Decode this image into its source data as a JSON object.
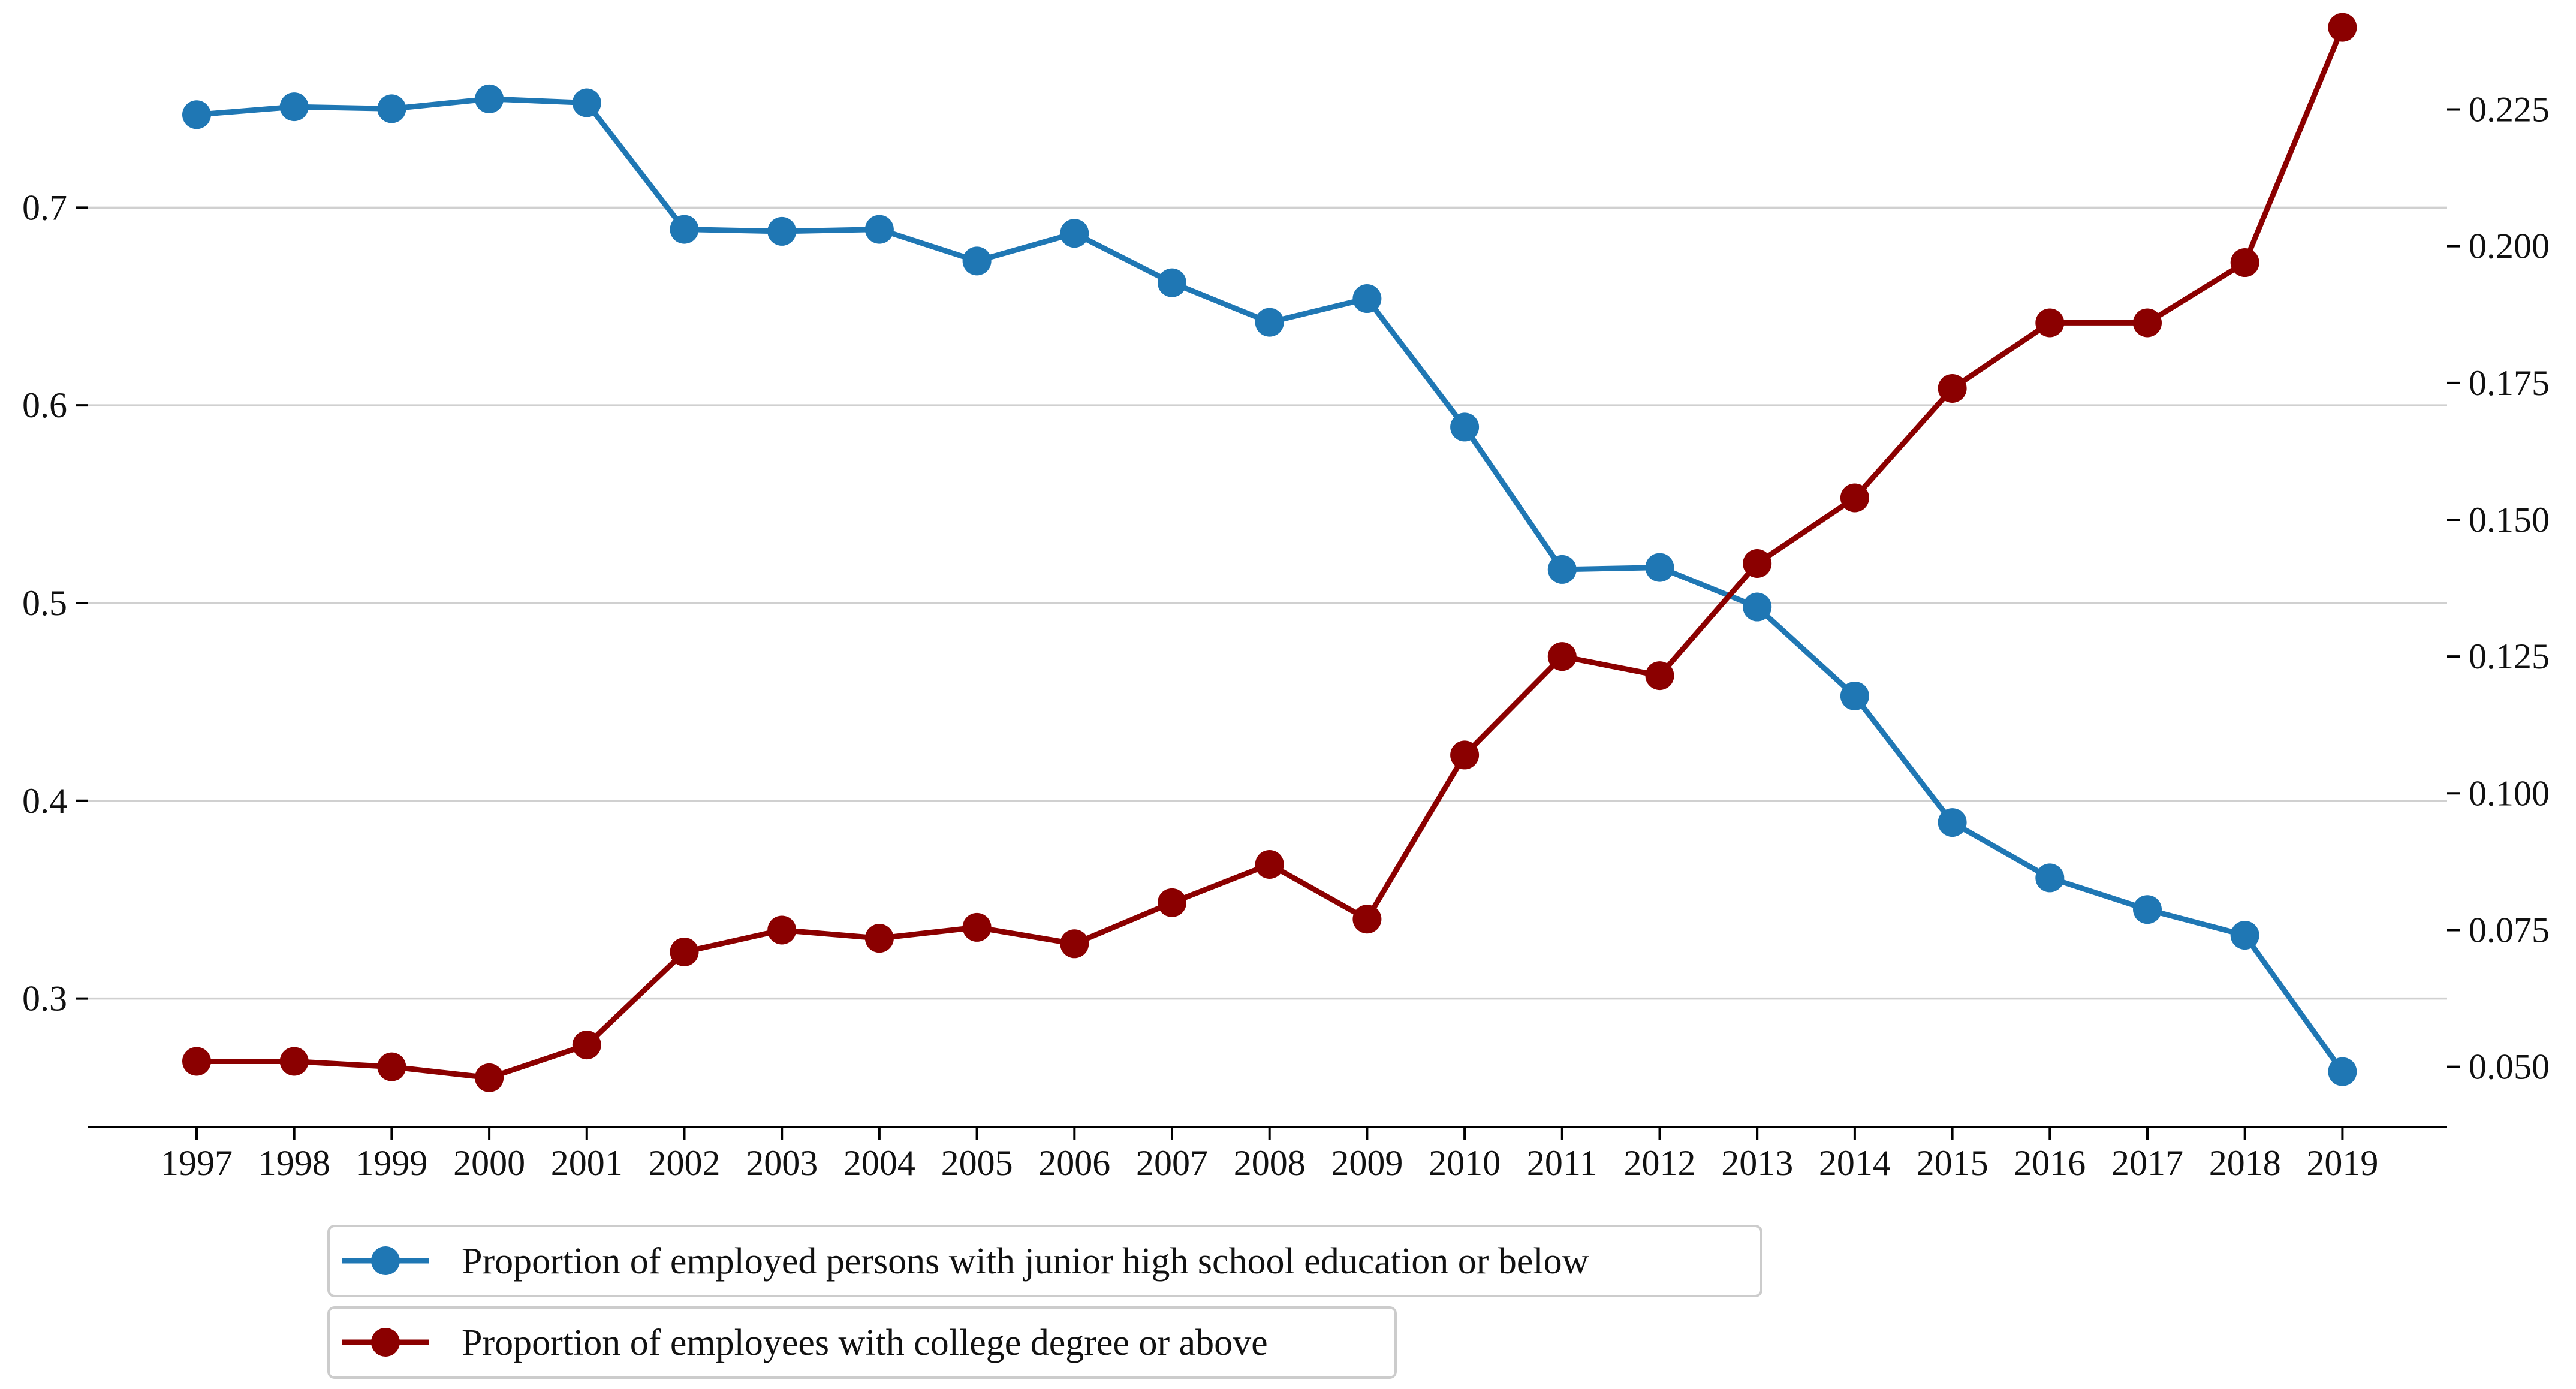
{
  "chart_data": {
    "type": "line",
    "title": "",
    "xlabel": "",
    "categories": [
      "1997",
      "1998",
      "1999",
      "2000",
      "2001",
      "2002",
      "2003",
      "2004",
      "2005",
      "2006",
      "2007",
      "2008",
      "2009",
      "2010",
      "2011",
      "2012",
      "2013",
      "2014",
      "2015",
      "2016",
      "2017",
      "2018",
      "2019"
    ],
    "left_axis": {
      "ylim": [
        0.235,
        0.805
      ],
      "ticks": [
        0.3,
        0.4,
        0.5,
        0.6,
        0.7
      ],
      "tick_labels": [
        "0.3",
        "0.4",
        "0.5",
        "0.6",
        "0.7"
      ]
    },
    "right_axis": {
      "ylim": [
        0.039,
        0.245
      ],
      "ticks": [
        0.05,
        0.075,
        0.1,
        0.125,
        0.15,
        0.175,
        0.2,
        0.225
      ],
      "tick_labels": [
        "0.050",
        "0.075",
        "0.100",
        "0.125",
        "0.150",
        "0.175",
        "0.200",
        "0.225"
      ]
    },
    "grid": true,
    "series": [
      {
        "name": "Proportion of employed persons with junior high school education or below",
        "axis": "left",
        "color": "#1f77b4",
        "values": [
          0.747,
          0.751,
          0.75,
          0.755,
          0.753,
          0.689,
          0.688,
          0.689,
          0.673,
          0.687,
          0.662,
          0.642,
          0.654,
          0.589,
          0.517,
          0.518,
          0.498,
          0.453,
          0.389,
          0.361,
          0.345,
          0.332,
          0.263
        ]
      },
      {
        "name": "Proportion of employees with college degree or above",
        "axis": "right",
        "color": "#8b0000",
        "values": [
          0.051,
          0.051,
          0.05,
          0.048,
          0.054,
          0.071,
          0.075,
          0.0735,
          0.0755,
          0.0725,
          0.08,
          0.087,
          0.077,
          0.107,
          0.125,
          0.1215,
          0.142,
          0.154,
          0.174,
          0.186,
          0.186,
          0.197,
          0.24
        ]
      }
    ],
    "legend_position": "bottom-center"
  }
}
